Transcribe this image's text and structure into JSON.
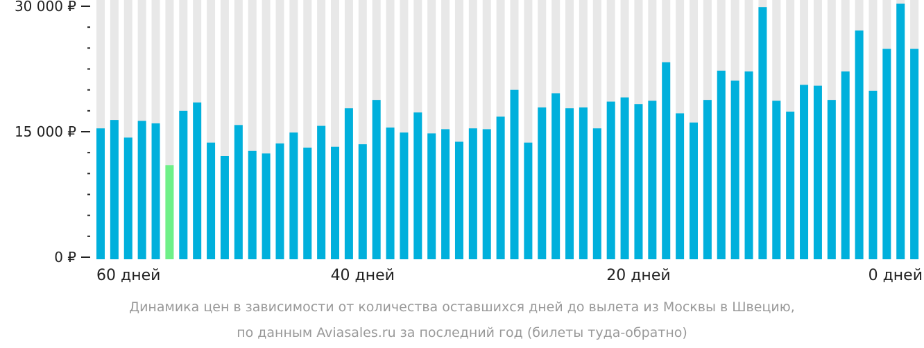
{
  "chart_data": {
    "type": "bar",
    "categories": [
      59,
      58,
      57,
      56,
      55,
      54,
      53,
      52,
      51,
      50,
      49,
      48,
      47,
      46,
      45,
      44,
      43,
      42,
      41,
      40,
      39,
      38,
      37,
      36,
      35,
      34,
      33,
      32,
      31,
      30,
      29,
      28,
      27,
      26,
      25,
      24,
      23,
      22,
      21,
      20,
      19,
      18,
      17,
      16,
      15,
      14,
      13,
      12,
      11,
      10,
      9,
      8,
      7,
      6,
      5,
      4,
      3,
      2,
      1,
      0
    ],
    "values": [
      15400,
      16400,
      14300,
      16300,
      16000,
      11000,
      17500,
      18500,
      13700,
      12100,
      15800,
      12700,
      12400,
      13600,
      14900,
      13100,
      15700,
      13200,
      17800,
      13500,
      18800,
      15500,
      14900,
      17300,
      14800,
      15300,
      13800,
      15400,
      15300,
      16800,
      20000,
      13700,
      17900,
      19600,
      17800,
      17900,
      15400,
      18600,
      19100,
      18300,
      18700,
      23300,
      17200,
      16100,
      18800,
      22300,
      21100,
      22200,
      29900,
      18700,
      17400,
      20600,
      20500,
      18800,
      22200,
      27100,
      19900,
      24900,
      30300,
      24900
    ],
    "highlight_index": 5,
    "ylim": [
      0,
      30000
    ],
    "y_ticks": [
      {
        "value": 30000,
        "label": "30 000 ₽"
      },
      {
        "value": 15000,
        "label": "15 000 ₽"
      },
      {
        "value": 0,
        "label": "0 ₽"
      }
    ],
    "y_minor_step": 2500,
    "x_ticks": [
      {
        "value": 60,
        "label": "60 дней"
      },
      {
        "value": 40,
        "label": "40 дней"
      },
      {
        "value": 20,
        "label": "20 дней"
      },
      {
        "value": 0,
        "label": "0 дней"
      }
    ],
    "colors": {
      "bar": "#00b0dc",
      "highlight": "#6ef088",
      "background": "#e8e8e8",
      "axis": "#222222",
      "caption": "#999999"
    },
    "grid": false
  },
  "caption": {
    "line1": "Динамика цен в зависимости от количества оставшихся дней до вылета из Москвы в Швецию,",
    "line2": "по данным Aviasales.ru за последний год (билеты туда-обратно)"
  }
}
